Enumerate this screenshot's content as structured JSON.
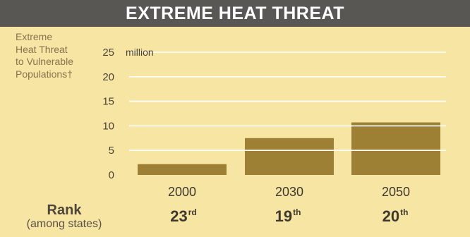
{
  "banner": {
    "title": "EXTREME HEAT THREAT"
  },
  "side_label": {
    "lines": [
      "Extreme",
      "Heat Threat",
      "to Vulnerable",
      "Populations†"
    ]
  },
  "rank": {
    "title": "Rank",
    "subtitle": "(among states)",
    "items": [
      {
        "number": "23",
        "suffix": "rd"
      },
      {
        "number": "19",
        "suffix": "th"
      },
      {
        "number": "20",
        "suffix": "th"
      }
    ]
  },
  "colors": {
    "background": "#f7e5a3",
    "banner": "#585753",
    "bar": "#9d8034",
    "gridline": "#ffffff",
    "text": "#4e463a"
  },
  "chart_data": {
    "type": "bar",
    "categories": [
      "2000",
      "2030",
      "2050"
    ],
    "values": [
      2.2,
      7.5,
      10.7
    ],
    "ylim": [
      0,
      25
    ],
    "yticks": [
      0,
      5,
      10,
      15,
      20,
      25
    ],
    "ytick_labels": [
      "0",
      "5",
      "10",
      "15",
      "20",
      "25"
    ],
    "y_unit_label": "million",
    "grid": true
  }
}
